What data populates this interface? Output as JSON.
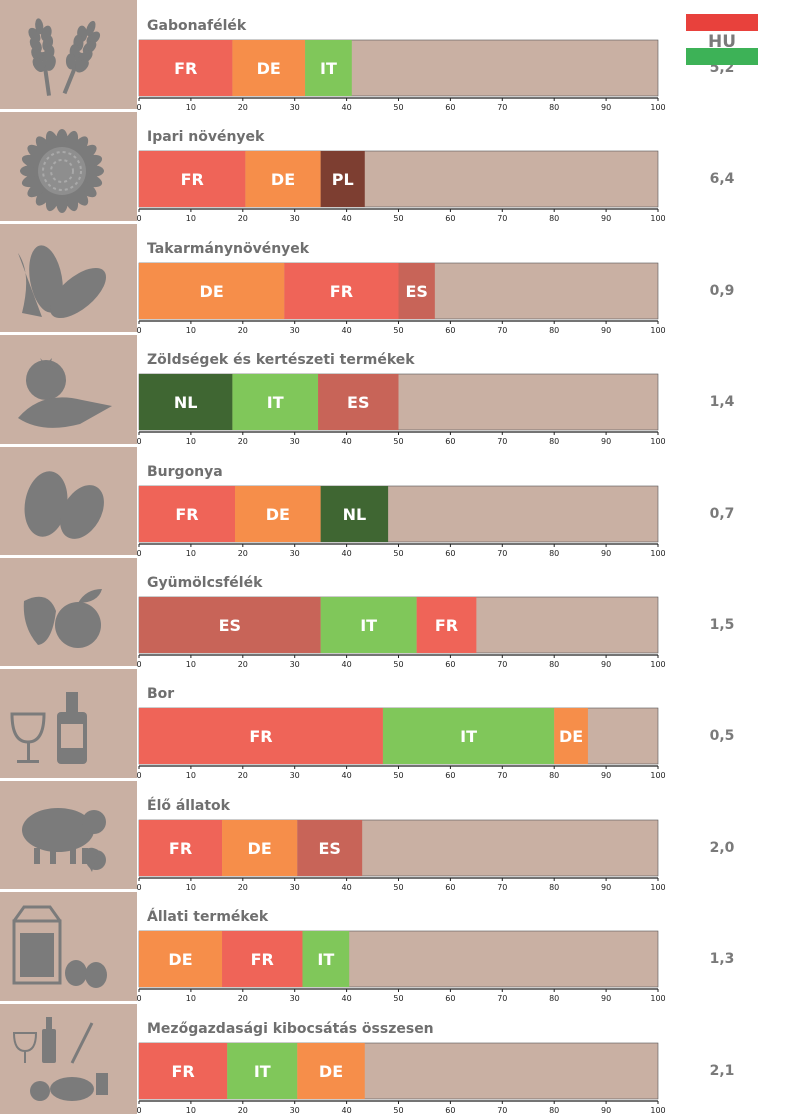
{
  "chart_data": {
    "type": "bar",
    "subtype": "stacked-horizontal",
    "xlim": [
      0,
      100
    ],
    "xticks": [
      0,
      10,
      20,
      30,
      40,
      50,
      60,
      70,
      80,
      90,
      100
    ],
    "remainder_color": "#c9b0a3",
    "country_colors": {
      "FR": "#ef6458",
      "DE": "#f68e4a",
      "IT": "#80c75a",
      "PL": "#7d3e31",
      "ES": "#c86458",
      "NL": "#3f6632"
    },
    "hu_flag": {
      "label": "HU",
      "colors": [
        "#e8413c",
        "#ffffff",
        "#3db257"
      ]
    },
    "rows": [
      {
        "title": "Gabonafélék",
        "icon": "wheat-icon",
        "hu_value": "5,2",
        "segments": [
          {
            "country": "FR",
            "value": 18
          },
          {
            "country": "DE",
            "value": 14
          },
          {
            "country": "IT",
            "value": 9
          }
        ]
      },
      {
        "title": "Ipari növények",
        "icon": "sunflower-icon",
        "hu_value": "6,4",
        "segments": [
          {
            "country": "FR",
            "value": 20.5
          },
          {
            "country": "DE",
            "value": 14.5
          },
          {
            "country": "PL",
            "value": 8.5
          }
        ]
      },
      {
        "title": "Takarmánynövények",
        "icon": "corn-icon",
        "hu_value": "0,9",
        "segments": [
          {
            "country": "DE",
            "value": 28
          },
          {
            "country": "FR",
            "value": 22
          },
          {
            "country": "ES",
            "value": 7
          }
        ]
      },
      {
        "title": "Zöldségek és kertészeti termékek",
        "icon": "vegetables-icon",
        "hu_value": "1,4",
        "segments": [
          {
            "country": "NL",
            "value": 18
          },
          {
            "country": "IT",
            "value": 16.5
          },
          {
            "country": "ES",
            "value": 15.5
          }
        ]
      },
      {
        "title": "Burgonya",
        "icon": "potato-icon",
        "hu_value": "0,7",
        "segments": [
          {
            "country": "FR",
            "value": 18.5
          },
          {
            "country": "DE",
            "value": 16.5
          },
          {
            "country": "NL",
            "value": 13
          }
        ]
      },
      {
        "title": "Gyümölcsfélék",
        "icon": "fruit-icon",
        "hu_value": "1,5",
        "segments": [
          {
            "country": "ES",
            "value": 35
          },
          {
            "country": "IT",
            "value": 18.5
          },
          {
            "country": "FR",
            "value": 11.5
          }
        ]
      },
      {
        "title": "Bor",
        "icon": "wine-icon",
        "hu_value": "0,5",
        "segments": [
          {
            "country": "FR",
            "value": 47
          },
          {
            "country": "IT",
            "value": 33
          },
          {
            "country": "DE",
            "value": 6.5
          }
        ]
      },
      {
        "title": "Élő állatok",
        "icon": "livestock-icon",
        "hu_value": "2,0",
        "segments": [
          {
            "country": "FR",
            "value": 16
          },
          {
            "country": "DE",
            "value": 14.5
          },
          {
            "country": "ES",
            "value": 12.5
          }
        ]
      },
      {
        "title": "Állati termékek",
        "icon": "milk-eggs-icon",
        "hu_value": "1,3",
        "segments": [
          {
            "country": "DE",
            "value": 16
          },
          {
            "country": "FR",
            "value": 15.5
          },
          {
            "country": "IT",
            "value": 9
          }
        ]
      },
      {
        "title": "Mezőgazdasági kibocsátás összesen",
        "icon": "total-output-icon",
        "hu_value": "2,1",
        "segments": [
          {
            "country": "FR",
            "value": 17
          },
          {
            "country": "IT",
            "value": 13.5
          },
          {
            "country": "DE",
            "value": 13
          }
        ]
      }
    ]
  }
}
